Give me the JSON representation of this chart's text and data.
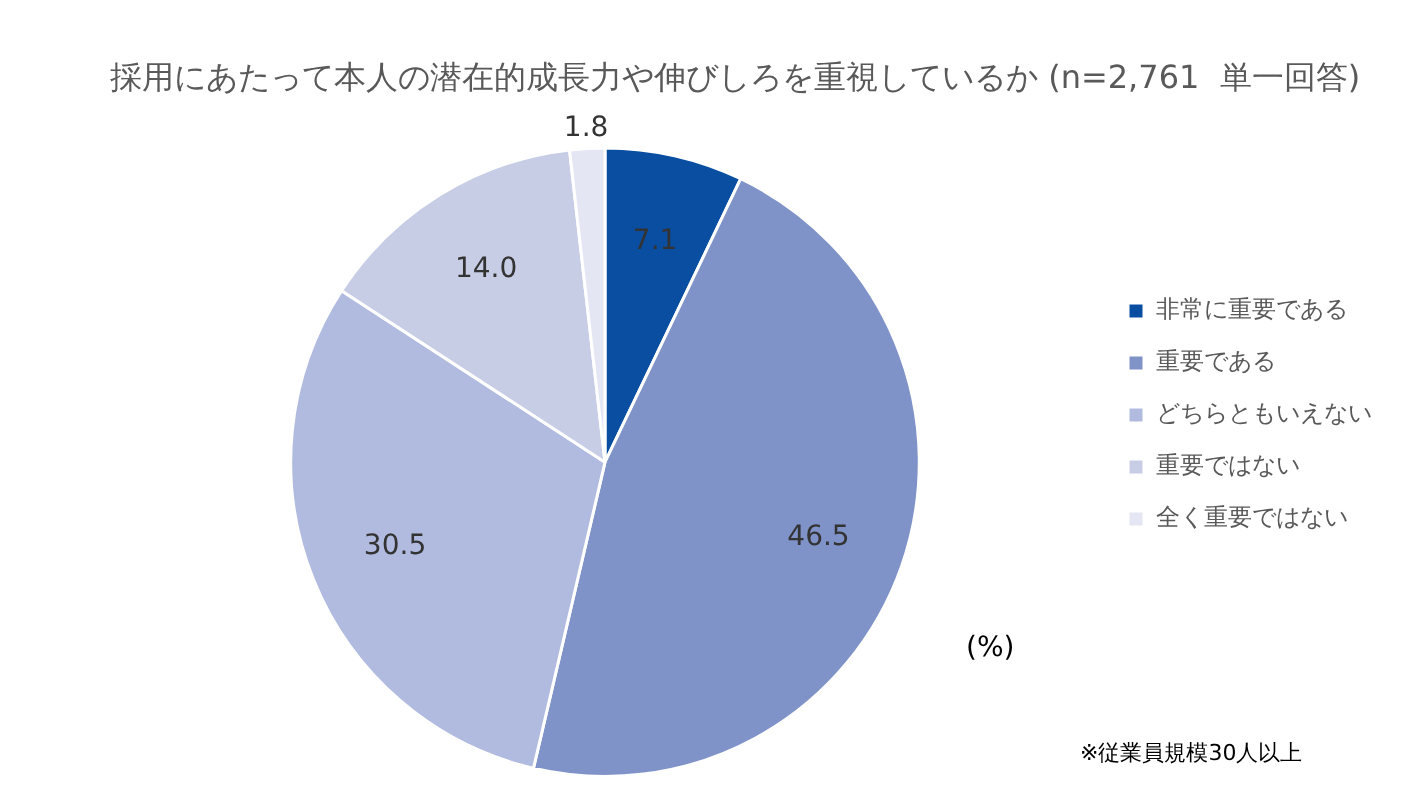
{
  "chart_data": {
    "type": "pie",
    "title": "採用にあたって本人の潜在的成長力や伸びしろを重視しているか (n=2,761  単一回答)",
    "categories": [
      "非常に重要である",
      "重要である",
      "どちらともいえない",
      "重要ではない",
      "全く重要ではない"
    ],
    "values": [
      7.1,
      46.5,
      30.5,
      14.0,
      1.8
    ],
    "value_labels": [
      "7.1",
      "46.5",
      "30.5",
      "14.0",
      "1.8"
    ],
    "colors": [
      "#0a4ea2",
      "#7f93c9",
      "#b1bbdf",
      "#c8cde6",
      "#e4e7f3"
    ],
    "legend": "right",
    "annotations": [
      "(%)",
      "※従業員規模30人以上"
    ]
  }
}
